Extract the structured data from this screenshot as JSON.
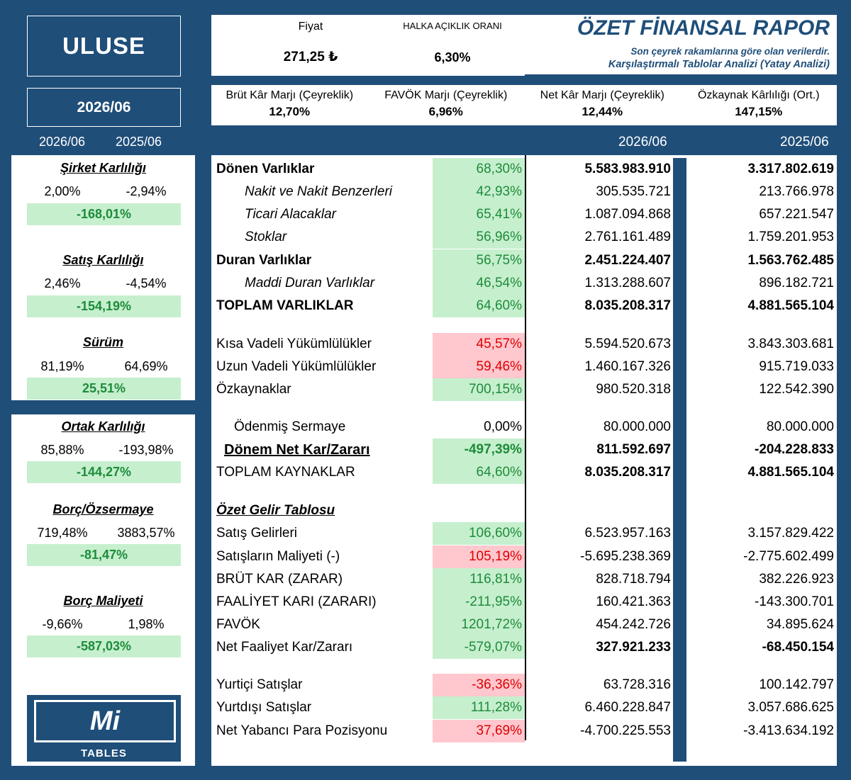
{
  "ticker": "ULUSE",
  "period": "2026/06",
  "left_col_headers": [
    "2026/06",
    "2025/06"
  ],
  "price": {
    "label": "Fiyat",
    "value": "271,25 ₺"
  },
  "float": {
    "label": "HALKA AÇIKLIK ORANI",
    "value": "6,30%"
  },
  "report": {
    "title": "ÖZET FİNANSAL RAPOR",
    "subtitle1": "Son çeyrek rakamlarına göre olan verilerdir.",
    "subtitle2": "Karşılaştırmalı Tablolar Analizi (Yatay Analizi)"
  },
  "margins": [
    {
      "label": "Brüt Kâr Marjı (Çeyreklik)",
      "value": "12,70%"
    },
    {
      "label": "FAVÖK Marjı (Çeyreklik)",
      "value": "6,96%"
    },
    {
      "label": "Net Kâr Marjı (Çeyreklik)",
      "value": "12,44%"
    },
    {
      "label": "Özkaynak Kârlılığı (Ort.)",
      "value": "147,15%"
    }
  ],
  "metrics_card1": [
    {
      "title": "Şirket Karlılığı",
      "current": "2,00%",
      "previous": "-2,94%",
      "change": "-168,01%"
    },
    {
      "title": "Satış Karlılığı",
      "current": "2,46%",
      "previous": "-4,54%",
      "change": "-154,19%"
    },
    {
      "title": "Sürüm",
      "current": "81,19%",
      "previous": "64,69%",
      "change": "25,51%"
    }
  ],
  "metrics_card2": [
    {
      "title": "Ortak Karlılığı",
      "current": "85,88%",
      "previous": "-193,98%",
      "change": "-144,27%"
    },
    {
      "title": "Borç/Özsermaye",
      "current": "719,48%",
      "previous": "3883,57%",
      "change": "-81,47%"
    },
    {
      "title": "Borç Maliyeti",
      "current": "-9,66%",
      "previous": "1,98%",
      "change": "-587,03%"
    }
  ],
  "logo": {
    "mark": "Mi",
    "text": "TABLES"
  },
  "table_headers": {
    "current": "2026/06",
    "previous": "2025/06"
  },
  "rows": [
    {
      "label": "Dönen Varlıklar",
      "change": "68,30%",
      "current": "5.583.983.910",
      "previous": "3.317.802.619"
    },
    {
      "label": "Nakit ve Nakit Benzerleri",
      "change": "42,93%",
      "current": "305.535.721",
      "previous": "213.766.978"
    },
    {
      "label": "Ticari Alacaklar",
      "change": "65,41%",
      "current": "1.087.094.868",
      "previous": "657.221.547"
    },
    {
      "label": "Stoklar",
      "change": "56,96%",
      "current": "2.761.161.489",
      "previous": "1.759.201.953"
    },
    {
      "label": "Duran Varlıklar",
      "change": "56,75%",
      "current": "2.451.224.407",
      "previous": "1.563.762.485"
    },
    {
      "label": "Maddi Duran Varlıklar",
      "change": "46,54%",
      "current": "1.313.288.607",
      "previous": "896.182.721"
    },
    {
      "label": "TOPLAM VARLIKLAR",
      "change": "64,60%",
      "current": "8.035.208.317",
      "previous": "4.881.565.104"
    },
    {
      "label": "Kısa Vadeli Yükümlülükler",
      "change": "45,57%",
      "current": "5.594.520.673",
      "previous": "3.843.303.681"
    },
    {
      "label": "Uzun Vadeli Yükümlülükler",
      "change": "59,46%",
      "current": "1.460.167.326",
      "previous": "915.719.033"
    },
    {
      "label": "Özkaynaklar",
      "change": "700,15%",
      "current": "980.520.318",
      "previous": "122.542.390"
    },
    {
      "label": "Ödenmiş Sermaye",
      "change": "0,00%",
      "current": "80.000.000",
      "previous": "80.000.000"
    },
    {
      "label": "Dönem Net Kar/Zararı",
      "change": "-497,39%",
      "current": "811.592.697",
      "previous": "-204.228.833"
    },
    {
      "label": "TOPLAM KAYNAKLAR",
      "change": "64,60%",
      "current": "8.035.208.317",
      "previous": "4.881.565.104"
    },
    {
      "label": "Özet Gelir Tablosu",
      "change": "",
      "current": "",
      "previous": ""
    },
    {
      "label": "Satış Gelirleri",
      "change": "106,60%",
      "current": "6.523.957.163",
      "previous": "3.157.829.422"
    },
    {
      "label": "Satışların Maliyeti (-)",
      "change": "105,19%",
      "current": "-5.695.238.369",
      "previous": "-2.775.602.499"
    },
    {
      "label": "BRÜT KAR (ZARAR)",
      "change": "116,81%",
      "current": "828.718.794",
      "previous": "382.226.923"
    },
    {
      "label": "FAALİYET KARI (ZARARI)",
      "change": "-211,95%",
      "current": "160.421.363",
      "previous": "-143.300.701"
    },
    {
      "label": "FAVÖK",
      "change": "1201,72%",
      "current": "454.242.726",
      "previous": "34.895.624"
    },
    {
      "label": "Net Faaliyet Kar/Zararı",
      "change": "-579,07%",
      "current": "327.921.233",
      "previous": "-68.450.154"
    },
    {
      "label": "Yurtiçi Satışlar",
      "change": "-36,36%",
      "current": "63.728.316",
      "previous": "100.142.797"
    },
    {
      "label": "Yurtdışı Satışlar",
      "change": "111,28%",
      "current": "6.460.228.847",
      "previous": "3.057.686.625"
    },
    {
      "label": "Net Yabancı Para Pozisyonu",
      "change": "37,69%",
      "current": "-4.700.225.553",
      "previous": "-3.413.634.192"
    }
  ]
}
